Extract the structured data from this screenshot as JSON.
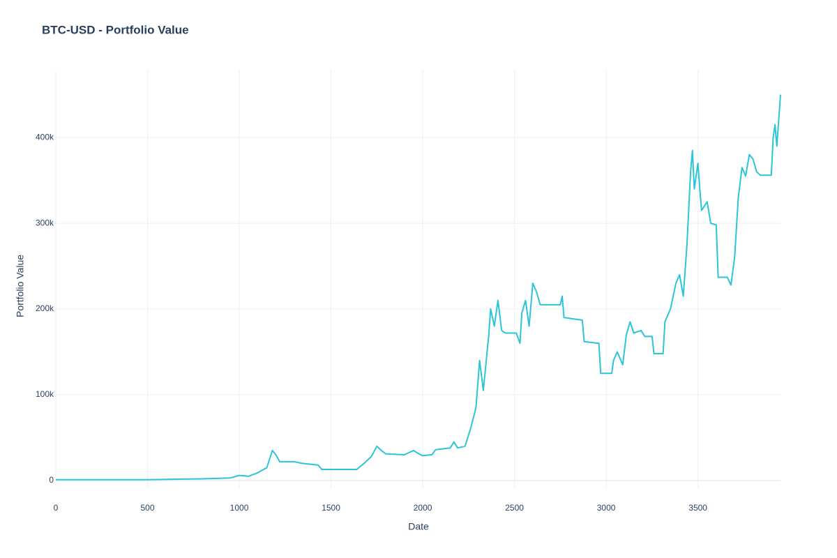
{
  "chart_data": {
    "type": "line",
    "title": "BTC-USD - Portfolio Value",
    "x_label": "Date",
    "y_label": "Portfolio Value",
    "x": [
      0,
      500,
      800,
      950,
      1000,
      1050,
      1100,
      1150,
      1180,
      1200,
      1220,
      1300,
      1340,
      1430,
      1450,
      1640,
      1680,
      1720,
      1750,
      1780,
      1800,
      1900,
      1950,
      1980,
      2000,
      2050,
      2070,
      2150,
      2170,
      2190,
      2230,
      2260,
      2290,
      2310,
      2330,
      2360,
      2370,
      2390,
      2410,
      2430,
      2450,
      2510,
      2530,
      2540,
      2560,
      2580,
      2600,
      2620,
      2640,
      2750,
      2760,
      2770,
      2870,
      2880,
      2960,
      2970,
      3030,
      3040,
      3060,
      3090,
      3110,
      3130,
      3150,
      3190,
      3210,
      3250,
      3260,
      3310,
      3320,
      3350,
      3380,
      3400,
      3420,
      3440,
      3460,
      3470,
      3480,
      3500,
      3510,
      3520,
      3550,
      3570,
      3600,
      3610,
      3660,
      3680,
      3700,
      3720,
      3740,
      3760,
      3780,
      3800,
      3820,
      3840,
      3900,
      3910,
      3920,
      3930,
      3940,
      3950
    ],
    "series": [
      {
        "name": "Portfolio Value",
        "color": "#2bc5d8",
        "values": [
          1000,
          1000,
          2000,
          3000,
          6000,
          5000,
          9000,
          15000,
          35000,
          30000,
          22000,
          22000,
          20000,
          18000,
          13000,
          13000,
          20000,
          28000,
          40000,
          34000,
          31000,
          30000,
          35000,
          31000,
          29000,
          30000,
          36000,
          38000,
          45000,
          38000,
          40000,
          60000,
          85000,
          140000,
          105000,
          170000,
          200000,
          180000,
          210000,
          175000,
          172000,
          172000,
          160000,
          195000,
          210000,
          180000,
          230000,
          220000,
          205000,
          205000,
          215000,
          190000,
          187000,
          162000,
          160000,
          125000,
          125000,
          140000,
          150000,
          135000,
          170000,
          185000,
          172000,
          175000,
          168000,
          168000,
          148000,
          148000,
          185000,
          200000,
          230000,
          240000,
          215000,
          275000,
          360000,
          385000,
          340000,
          370000,
          340000,
          315000,
          325000,
          300000,
          298000,
          237000,
          237000,
          228000,
          260000,
          330000,
          365000,
          355000,
          380000,
          375000,
          360000,
          356000,
          356000,
          400000,
          415000,
          390000,
          420000,
          450000
        ]
      }
    ],
    "xlim": [
      0,
      3950
    ],
    "xticks": [
      0,
      500,
      1000,
      1500,
      2000,
      2500,
      3000,
      3500
    ],
    "ylim": [
      -9000,
      479000
    ],
    "yticks": [
      0,
      {
        "value": 100000,
        "label": "100k"
      },
      {
        "value": 200000,
        "label": "200k"
      },
      {
        "value": 300000,
        "label": "300k"
      },
      {
        "value": 400000,
        "label": "400k"
      }
    ],
    "grid": true
  }
}
